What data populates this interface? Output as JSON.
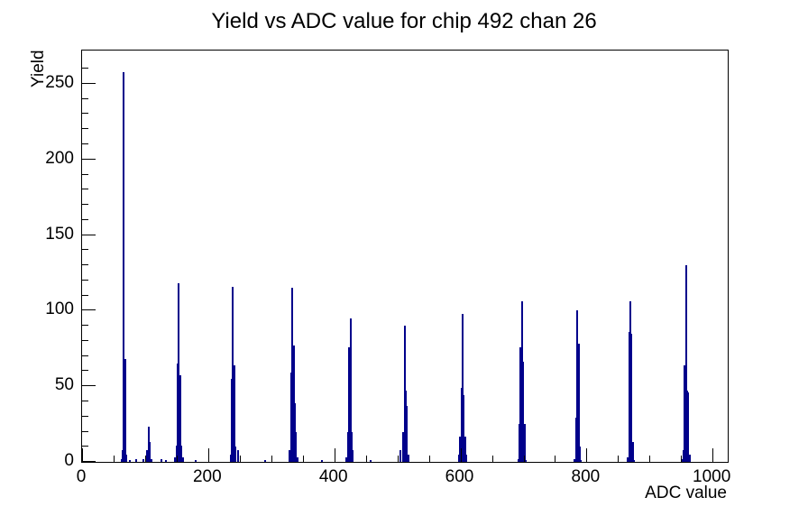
{
  "page": {
    "background_color": "#ffffff",
    "foreground_color": "#000000"
  },
  "chart_data": {
    "type": "bar",
    "title": "Yield vs ADC value for chip 492 chan 26",
    "xlabel": "ADC value",
    "ylabel": "Yield",
    "xlim": [
      0,
      1024
    ],
    "ylim": [
      0,
      272
    ],
    "grid": false,
    "legend": false,
    "x_major_ticks": [
      0,
      200,
      400,
      600,
      800,
      1000
    ],
    "x_minor_step": 50,
    "y_major_ticks": [
      0,
      50,
      100,
      150,
      200,
      250
    ],
    "y_minor_step": 10,
    "bin_width": 2,
    "line_color": "#00008b",
    "bins": [
      [
        62,
        2
      ],
      [
        64,
        8
      ],
      [
        66,
        258
      ],
      [
        68,
        68
      ],
      [
        70,
        5
      ],
      [
        76,
        1
      ],
      [
        86,
        2
      ],
      [
        97,
        2
      ],
      [
        101,
        4
      ],
      [
        103,
        8
      ],
      [
        105,
        23
      ],
      [
        107,
        13
      ],
      [
        109,
        2
      ],
      [
        126,
        2
      ],
      [
        133,
        1
      ],
      [
        147,
        3
      ],
      [
        149,
        11
      ],
      [
        151,
        65
      ],
      [
        153,
        118
      ],
      [
        155,
        57
      ],
      [
        157,
        11
      ],
      [
        159,
        3
      ],
      [
        179,
        1
      ],
      [
        235,
        5
      ],
      [
        237,
        55
      ],
      [
        239,
        116
      ],
      [
        241,
        64
      ],
      [
        243,
        10
      ],
      [
        247,
        8
      ],
      [
        290,
        1
      ],
      [
        329,
        8
      ],
      [
        331,
        59
      ],
      [
        333,
        115
      ],
      [
        335,
        77
      ],
      [
        337,
        39
      ],
      [
        339,
        20
      ],
      [
        341,
        3
      ],
      [
        380,
        1
      ],
      [
        419,
        3
      ],
      [
        421,
        20
      ],
      [
        423,
        76
      ],
      [
        425,
        95
      ],
      [
        427,
        20
      ],
      [
        429,
        8
      ],
      [
        457,
        1
      ],
      [
        505,
        8
      ],
      [
        509,
        20
      ],
      [
        511,
        90
      ],
      [
        513,
        47
      ],
      [
        515,
        37
      ],
      [
        517,
        5
      ],
      [
        597,
        5
      ],
      [
        599,
        17
      ],
      [
        601,
        49
      ],
      [
        603,
        98
      ],
      [
        605,
        44
      ],
      [
        607,
        17
      ],
      [
        609,
        5
      ],
      [
        691,
        2
      ],
      [
        693,
        25
      ],
      [
        695,
        76
      ],
      [
        697,
        106
      ],
      [
        699,
        66
      ],
      [
        701,
        25
      ],
      [
        703,
        1
      ],
      [
        781,
        2
      ],
      [
        783,
        29
      ],
      [
        785,
        100
      ],
      [
        787,
        78
      ],
      [
        789,
        10
      ],
      [
        791,
        1
      ],
      [
        865,
        3
      ],
      [
        867,
        86
      ],
      [
        869,
        106
      ],
      [
        871,
        85
      ],
      [
        873,
        13
      ],
      [
        875,
        1
      ],
      [
        951,
        2
      ],
      [
        953,
        8
      ],
      [
        955,
        64
      ],
      [
        957,
        130
      ],
      [
        959,
        47
      ],
      [
        961,
        46
      ],
      [
        963,
        5
      ]
    ]
  }
}
